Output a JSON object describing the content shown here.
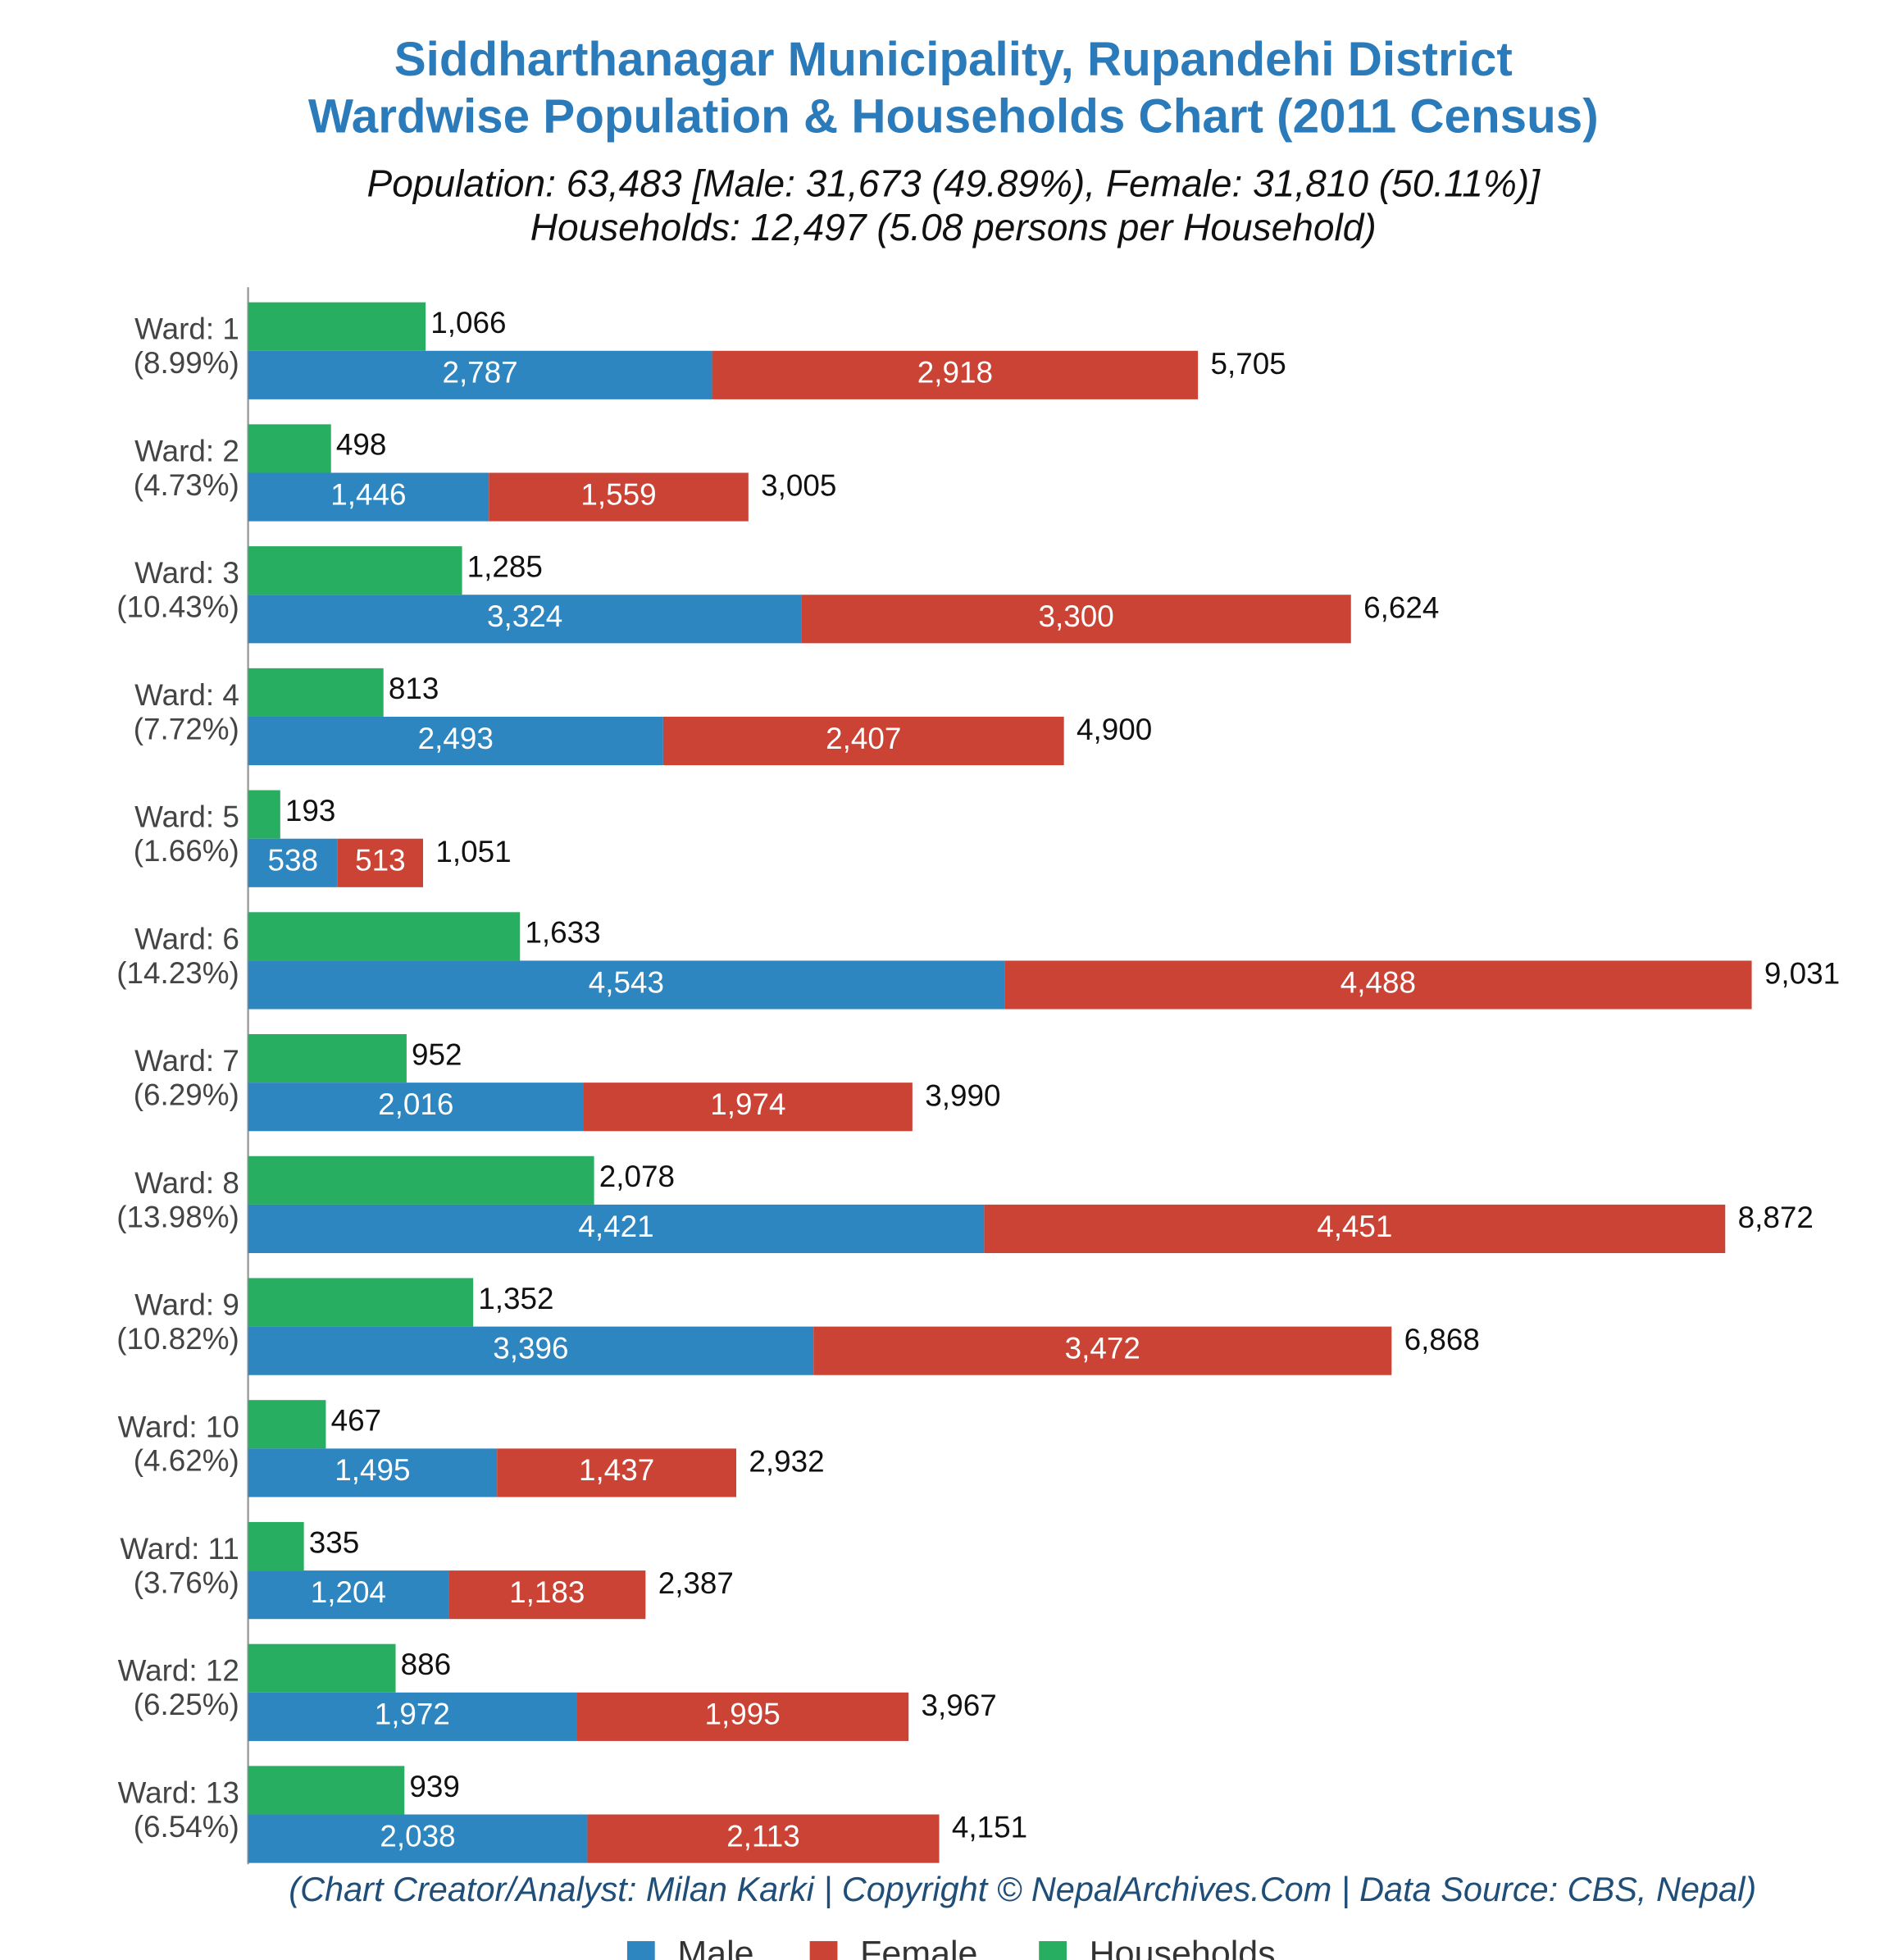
{
  "chart_data": {
    "type": "bar",
    "orientation": "horizontal",
    "title": [
      "Siddharthanagar Municipality, Rupandehi District",
      "Wardwise Population & Households Chart (2011 Census)"
    ],
    "subtitle": [
      "Population: 63,483 [Male: 31,673 (49.89%), Female: 31,810 (50.11%)]",
      "Households: 12,497 (5.08 persons per Household)"
    ],
    "caption": "(Chart Creator/Analyst: Milan Karki | Copyright © NepalArchives.Com | Data Source: CBS, Nepal)",
    "categories": [
      "Ward: 1",
      "Ward: 2",
      "Ward: 3",
      "Ward: 4",
      "Ward: 5",
      "Ward: 6",
      "Ward: 7",
      "Ward: 8",
      "Ward: 9",
      "Ward: 10",
      "Ward: 11",
      "Ward: 12",
      "Ward: 13"
    ],
    "shares": [
      8.99,
      4.73,
      10.43,
      7.72,
      1.66,
      14.23,
      6.29,
      13.98,
      10.82,
      4.62,
      3.76,
      6.25,
      6.54
    ],
    "share_labels": [
      "(8.99%)",
      "(4.73%)",
      "(10.43%)",
      "(7.72%)",
      "(1.66%)",
      "(14.23%)",
      "(6.29%)",
      "(13.98%)",
      "(10.82%)",
      "(4.62%)",
      "(3.76%)",
      "(6.25%)",
      "(6.54%)"
    ],
    "series": [
      {
        "name": "Male",
        "color": "#2e86c1",
        "values": [
          2787,
          1446,
          3324,
          2493,
          538,
          4543,
          2016,
          4421,
          3396,
          1495,
          1204,
          1972,
          2038
        ],
        "value_labels": [
          "2,787",
          "1,446",
          "3,324",
          "2,493",
          "538",
          "4,543",
          "2,016",
          "4,421",
          "3,396",
          "1,495",
          "1,204",
          "1,972",
          "2,038"
        ]
      },
      {
        "name": "Female",
        "color": "#cb4335",
        "values": [
          2918,
          1559,
          3300,
          2407,
          513,
          4488,
          1974,
          4451,
          3472,
          1437,
          1183,
          1995,
          2113
        ],
        "value_labels": [
          "2,918",
          "1,559",
          "3,300",
          "2,407",
          "513",
          "4,488",
          "1,974",
          "4,451",
          "3,472",
          "1,437",
          "1,183",
          "1,995",
          "2,113"
        ]
      },
      {
        "name": "Households",
        "color": "#27ae60",
        "values": [
          1066,
          498,
          1285,
          813,
          193,
          1633,
          952,
          2078,
          1352,
          467,
          335,
          886,
          939
        ],
        "value_labels": [
          "1,066",
          "498",
          "1,285",
          "813",
          "193",
          "1,633",
          "952",
          "2,078",
          "1,352",
          "467",
          "335",
          "886",
          "939"
        ]
      }
    ],
    "totals": {
      "values": [
        5705,
        3005,
        6624,
        4900,
        1051,
        9031,
        3990,
        8872,
        6868,
        2932,
        2387,
        3967,
        4151
      ],
      "value_labels": [
        "5,705",
        "3,005",
        "6,624",
        "4,900",
        "1,051",
        "9,031",
        "3,990",
        "8,872",
        "6,868",
        "2,932",
        "2,387",
        "3,967",
        "4,151"
      ]
    },
    "xlim": [
      0,
      9500
    ],
    "legend": "bottom"
  }
}
